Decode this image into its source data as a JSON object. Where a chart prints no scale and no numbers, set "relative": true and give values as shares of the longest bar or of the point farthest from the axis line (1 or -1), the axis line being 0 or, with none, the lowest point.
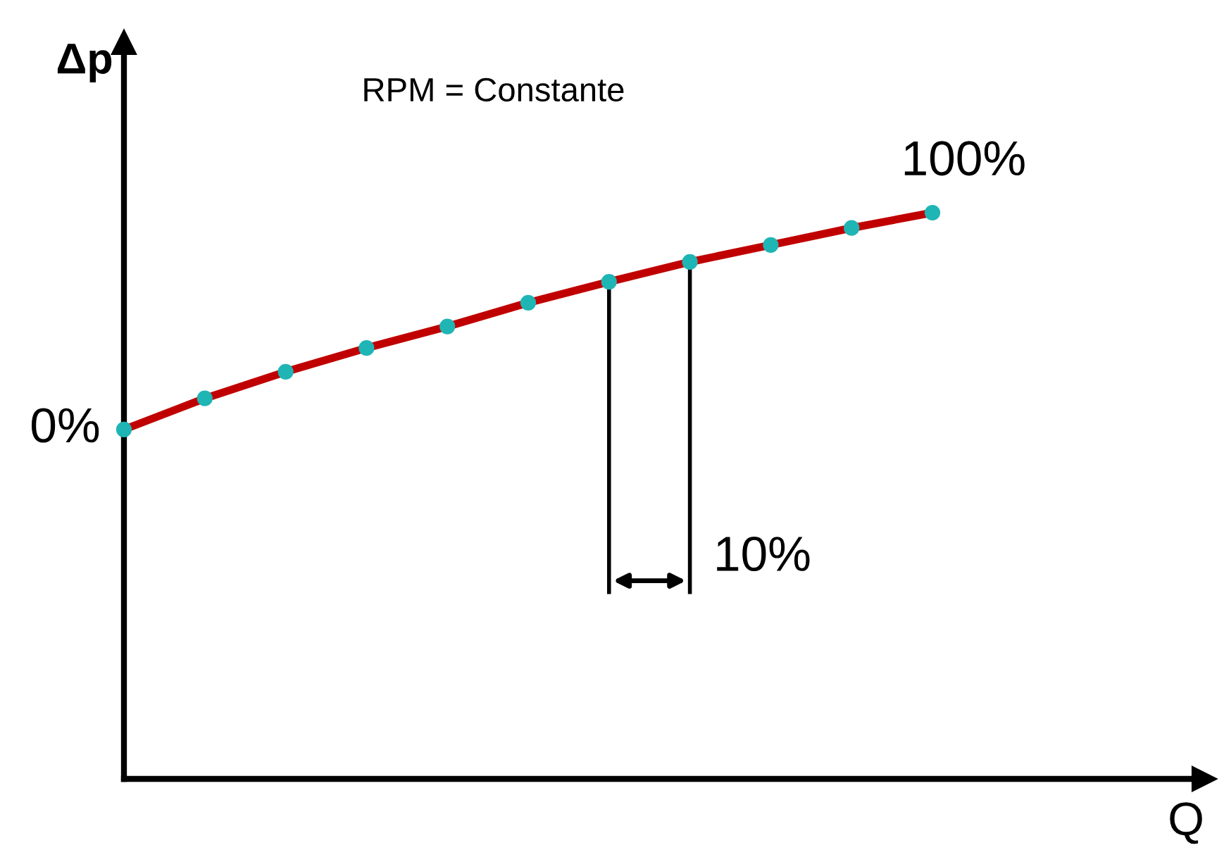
{
  "chart_data": {
    "type": "line",
    "relative": true,
    "xlabel": "Q",
    "ylabel": "Δp",
    "categories": [
      null,
      null,
      null,
      null,
      null,
      null,
      null,
      null,
      null,
      null,
      null
    ],
    "series": [
      {
        "color": "#c00000",
        "values": [
          0.617,
          0.672,
          0.719,
          0.761,
          0.799,
          0.841,
          0.878,
          0.913,
          0.943,
          0.973,
          1.0
        ]
      }
    ],
    "marker": "circle",
    "grid": false,
    "legend": false,
    "annotations": [
      "RPM = Constante",
      "0%",
      "100%",
      "10%"
    ]
  }
}
